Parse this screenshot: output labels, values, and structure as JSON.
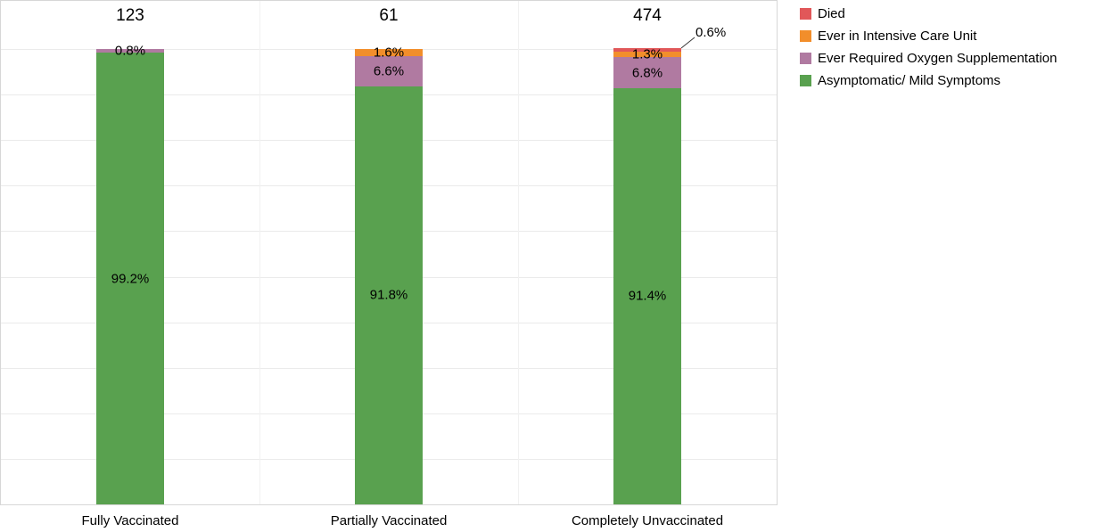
{
  "chart_data": {
    "type": "bar",
    "subtype": "stacked-percentage-column",
    "categories": [
      "Fully Vaccinated",
      "Partially Vaccinated",
      "Completely Unvaccinated"
    ],
    "bar_totals": [
      "123",
      "61",
      "474"
    ],
    "series": [
      {
        "name": "Died",
        "color": "#e15759",
        "values": [
          0,
          0,
          0.6
        ],
        "labels": [
          "",
          "",
          ""
        ]
      },
      {
        "name": "Ever in Intensive Care Unit",
        "color": "#f28e2b",
        "values": [
          0,
          1.6,
          1.3
        ],
        "labels": [
          "",
          "1.6%",
          "1.3%"
        ]
      },
      {
        "name": "Ever Required Oxygen Supplementation",
        "color": "#b07aa1",
        "values": [
          0.8,
          6.6,
          6.8
        ],
        "labels": [
          "0.8%",
          "6.6%",
          "6.8%"
        ]
      },
      {
        "name": "Asymptomatic/ Mild Symptoms",
        "color": "#59a14f",
        "values": [
          99.2,
          91.8,
          91.4
        ],
        "labels": [
          "99.2%",
          "91.8%",
          "91.4%"
        ]
      }
    ],
    "stack_order_bottom_to_top": [
      "Asymptomatic/ Mild Symptoms",
      "Ever Required Oxygen Supplementation",
      "Ever in Intensive Care Unit",
      "Died"
    ],
    "ylim": [
      0,
      100
    ],
    "grid": true,
    "legend_position": "top-right",
    "annotation": {
      "text": "0.6%",
      "series": "Died",
      "category": "Completely Unvaccinated"
    }
  }
}
